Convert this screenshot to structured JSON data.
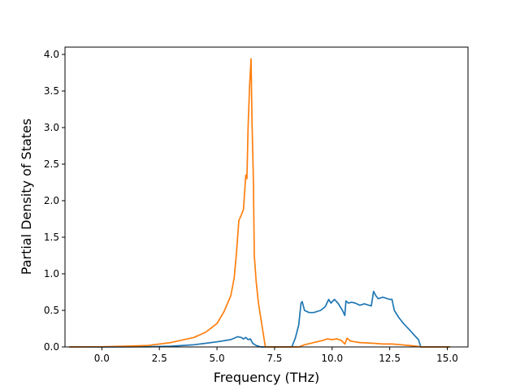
{
  "chart_data": {
    "type": "line",
    "title": "",
    "xlabel": "Frequency (THz)",
    "ylabel": "Partial Density of States",
    "xlim": [
      -1.6,
      15.9
    ],
    "ylim": [
      0.0,
      4.1
    ],
    "xticks": [
      0.0,
      2.5,
      5.0,
      7.5,
      10.0,
      12.5,
      15.0
    ],
    "xtick_labels": [
      "0.0",
      "2.5",
      "5.0",
      "7.5",
      "10.0",
      "12.5",
      "15.0"
    ],
    "yticks": [
      0.0,
      0.5,
      1.0,
      1.5,
      2.0,
      2.5,
      3.0,
      3.5,
      4.0
    ],
    "ytick_labels": [
      "0.0",
      "0.5",
      "1.0",
      "1.5",
      "2.0",
      "2.5",
      "3.0",
      "3.5",
      "4.0"
    ],
    "grid": false,
    "legend": "none",
    "series": [
      {
        "color": "#1f77b4",
        "points": [
          [
            -1.4,
            0.0
          ],
          [
            0.0,
            0.0
          ],
          [
            2.0,
            0.003
          ],
          [
            3.0,
            0.01
          ],
          [
            4.0,
            0.03
          ],
          [
            5.0,
            0.07
          ],
          [
            5.6,
            0.1
          ],
          [
            5.9,
            0.14
          ],
          [
            6.05,
            0.13
          ],
          [
            6.15,
            0.11
          ],
          [
            6.25,
            0.13
          ],
          [
            6.35,
            0.1
          ],
          [
            6.45,
            0.11
          ],
          [
            6.55,
            0.05
          ],
          [
            6.7,
            0.02
          ],
          [
            6.9,
            0.0
          ],
          [
            8.25,
            0.0
          ],
          [
            8.4,
            0.12
          ],
          [
            8.55,
            0.3
          ],
          [
            8.65,
            0.6
          ],
          [
            8.7,
            0.62
          ],
          [
            8.8,
            0.5
          ],
          [
            9.0,
            0.47
          ],
          [
            9.2,
            0.47
          ],
          [
            9.5,
            0.5
          ],
          [
            9.7,
            0.55
          ],
          [
            9.85,
            0.65
          ],
          [
            9.95,
            0.6
          ],
          [
            10.1,
            0.65
          ],
          [
            10.25,
            0.6
          ],
          [
            10.45,
            0.5
          ],
          [
            10.55,
            0.43
          ],
          [
            10.6,
            0.63
          ],
          [
            10.7,
            0.6
          ],
          [
            10.85,
            0.61
          ],
          [
            11.0,
            0.6
          ],
          [
            11.2,
            0.57
          ],
          [
            11.4,
            0.59
          ],
          [
            11.6,
            0.57
          ],
          [
            11.7,
            0.56
          ],
          [
            11.8,
            0.76
          ],
          [
            11.9,
            0.7
          ],
          [
            12.0,
            0.66
          ],
          [
            12.2,
            0.68
          ],
          [
            12.3,
            0.67
          ],
          [
            12.5,
            0.65
          ],
          [
            12.6,
            0.65
          ],
          [
            12.7,
            0.5
          ],
          [
            12.9,
            0.4
          ],
          [
            13.1,
            0.32
          ],
          [
            13.4,
            0.22
          ],
          [
            13.6,
            0.15
          ],
          [
            13.75,
            0.1
          ],
          [
            13.85,
            0.0
          ],
          [
            15.1,
            0.0
          ]
        ]
      },
      {
        "color": "#ff7f0e",
        "points": [
          [
            -1.4,
            0.0
          ],
          [
            0.0,
            0.002
          ],
          [
            1.0,
            0.01
          ],
          [
            2.0,
            0.02
          ],
          [
            3.0,
            0.06
          ],
          [
            4.0,
            0.13
          ],
          [
            4.5,
            0.2
          ],
          [
            5.0,
            0.32
          ],
          [
            5.3,
            0.48
          ],
          [
            5.6,
            0.7
          ],
          [
            5.75,
            0.95
          ],
          [
            5.85,
            1.3
          ],
          [
            5.95,
            1.73
          ],
          [
            6.05,
            1.8
          ],
          [
            6.15,
            1.88
          ],
          [
            6.25,
            2.35
          ],
          [
            6.3,
            2.3
          ],
          [
            6.35,
            3.0
          ],
          [
            6.42,
            3.6
          ],
          [
            6.48,
            3.94
          ],
          [
            6.52,
            3.1
          ],
          [
            6.58,
            2.3
          ],
          [
            6.62,
            1.25
          ],
          [
            6.7,
            0.9
          ],
          [
            6.8,
            0.6
          ],
          [
            6.95,
            0.3
          ],
          [
            7.1,
            0.0
          ],
          [
            8.55,
            0.0
          ],
          [
            8.8,
            0.03
          ],
          [
            9.2,
            0.06
          ],
          [
            9.6,
            0.09
          ],
          [
            9.8,
            0.11
          ],
          [
            10.0,
            0.1
          ],
          [
            10.2,
            0.11
          ],
          [
            10.4,
            0.09
          ],
          [
            10.55,
            0.04
          ],
          [
            10.65,
            0.12
          ],
          [
            10.8,
            0.08
          ],
          [
            11.2,
            0.06
          ],
          [
            11.8,
            0.05
          ],
          [
            12.2,
            0.04
          ],
          [
            12.6,
            0.04
          ],
          [
            13.0,
            0.03
          ],
          [
            13.5,
            0.015
          ],
          [
            13.9,
            0.0
          ],
          [
            15.1,
            0.0
          ]
        ]
      }
    ]
  }
}
